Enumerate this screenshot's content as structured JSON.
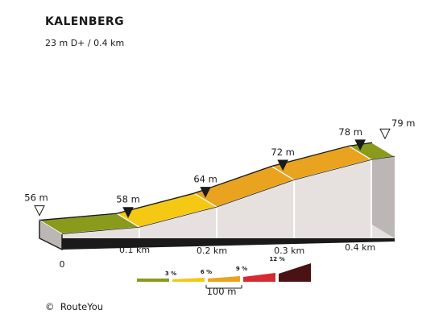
{
  "title": "KALENBERG",
  "subtitle": "23 m D+ / 0.4 km",
  "copyright_symbol": "©",
  "copyright_text": "RouteYou",
  "chart_data": {
    "type": "area",
    "title": "KALENBERG",
    "subtitle": "23 m D+ / 0.4 km",
    "xlabel": "",
    "ylabel": "",
    "x_unit": "km",
    "y_unit": "m",
    "xlim": [
      0,
      0.43
    ],
    "points": [
      {
        "x": 0.0,
        "y": 56,
        "label": "56 m",
        "marker": "open"
      },
      {
        "x": 0.1,
        "y": 58,
        "label": "58 m",
        "marker": "filled"
      },
      {
        "x": 0.2,
        "y": 64,
        "label": "64 m",
        "marker": "filled"
      },
      {
        "x": 0.3,
        "y": 72,
        "label": "72 m",
        "marker": "filled"
      },
      {
        "x": 0.4,
        "y": 78,
        "label": "78 m",
        "marker": "filled"
      },
      {
        "x": 0.43,
        "y": 79,
        "label": "79 m",
        "marker": "open"
      }
    ],
    "segments": [
      {
        "from": 0.0,
        "to": 0.1,
        "grade_class": "0-3",
        "color": "#8a9a1b"
      },
      {
        "from": 0.1,
        "to": 0.2,
        "grade_class": "3-6",
        "color": "#f5c813"
      },
      {
        "from": 0.2,
        "to": 0.3,
        "grade_class": "6-9",
        "color": "#eaa31f"
      },
      {
        "from": 0.3,
        "to": 0.4,
        "grade_class": "6-9",
        "color": "#eaa31f"
      },
      {
        "from": 0.4,
        "to": 0.43,
        "grade_class": "0-3",
        "color": "#8a9a1b"
      }
    ],
    "x_ticks": [
      {
        "value": 0.0,
        "label": "0"
      },
      {
        "value": 0.1,
        "label": "0.1 km"
      },
      {
        "value": 0.2,
        "label": "0.2 km"
      },
      {
        "value": 0.3,
        "label": "0.3 km"
      },
      {
        "value": 0.4,
        "label": "0.4 km"
      }
    ],
    "legend": {
      "items": [
        {
          "label": "",
          "color": "#8a9a1b"
        },
        {
          "label": "3 %",
          "color": "#f5c813"
        },
        {
          "label": "6 %",
          "color": "#eaa31f"
        },
        {
          "label": "9 %",
          "color": "#d42a30"
        },
        {
          "label": "12 %",
          "color": "#4a1212"
        }
      ],
      "scale_label": "100 m"
    },
    "colors": {
      "side_light": "#e6e1df",
      "side_dark": "#bcb7b5",
      "outline": "#1a1a1a"
    }
  }
}
